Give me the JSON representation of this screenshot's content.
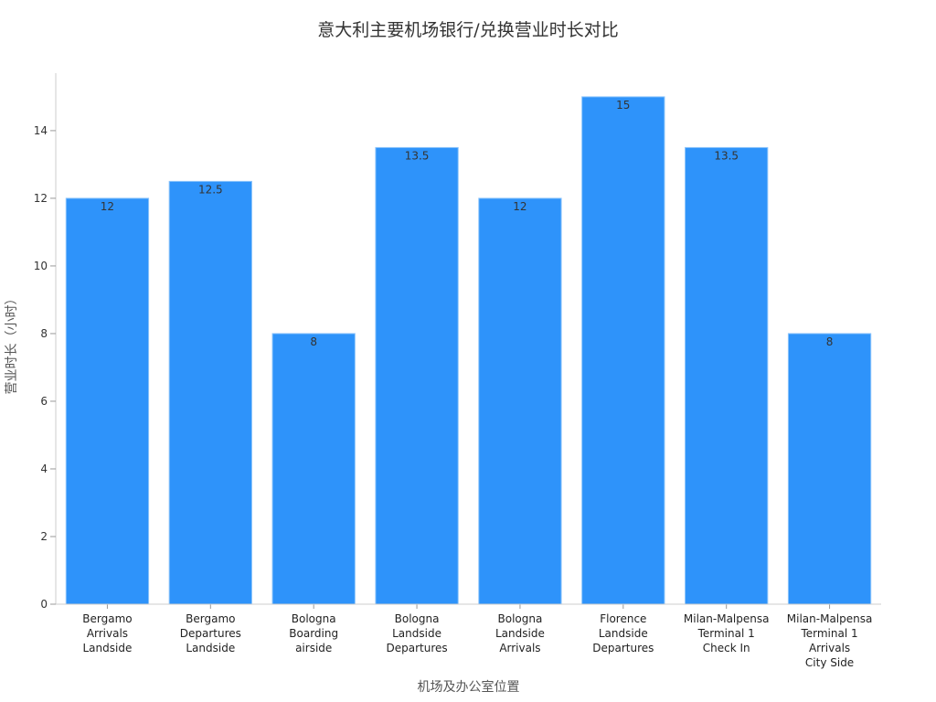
{
  "chart_data": {
    "type": "bar",
    "title": "意大利主要机场银行/兑换营业时长对比",
    "xlabel": "机场及办公室位置",
    "ylabel": "营业时长（小时）",
    "categories": [
      [
        "Bergamo",
        "Arrivals",
        "Landside"
      ],
      [
        "Bergamo",
        "Departures",
        "Landside"
      ],
      [
        "Bologna",
        "Boarding",
        "airside"
      ],
      [
        "Bologna",
        "Landside",
        "Departures"
      ],
      [
        "Bologna",
        "Landside",
        "Arrivals"
      ],
      [
        "Florence",
        "Landside",
        "Departures"
      ],
      [
        "Milan-Malpensa",
        "Terminal 1",
        "Check In"
      ],
      [
        "Milan-Malpensa",
        "Terminal 1",
        "Arrivals",
        "City Side"
      ]
    ],
    "values": [
      12,
      12.5,
      8,
      13.5,
      12,
      15,
      13.5,
      8
    ],
    "value_labels": [
      "12",
      "12.5",
      "8",
      "13.5",
      "12",
      "15",
      "13.5",
      "8"
    ],
    "ylim": [
      0,
      15.7
    ],
    "yticks": [
      0,
      2,
      4,
      6,
      8,
      10,
      12,
      14
    ],
    "grid": false,
    "legend": "none",
    "colors": {
      "bar": "#2e93fa",
      "bar_edge": "#8cc4fb"
    }
  }
}
